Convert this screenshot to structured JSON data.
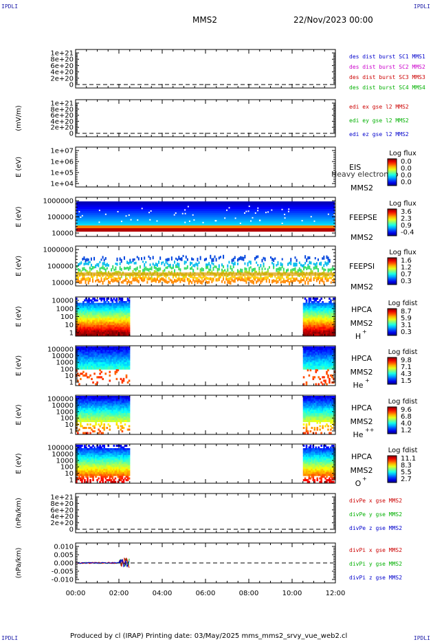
{
  "corners": {
    "top_left": "IPDLI",
    "top_right": "IPDLI",
    "bottom_left": "IPDLI",
    "bottom_right": "IPDLI"
  },
  "header": {
    "spacecraft": "MMS2",
    "date": "22/Nov/2023 00:00"
  },
  "footer": {
    "text": "Produced by cl (IRAP)   Printing date: 03/May/2025   mms_mms2_srvy_vue_web2.cl"
  },
  "chart_data": {
    "type": "stacked-timeseries",
    "time_ticks": [
      "00:00",
      "02:00",
      "04:00",
      "06:00",
      "08:00",
      "10:00",
      "12:00"
    ],
    "data_windows": [
      [
        "00:00",
        "02:30"
      ],
      [
        "10:30",
        "12:00"
      ]
    ],
    "panels": [
      {
        "id": "des",
        "kind": "line",
        "ylabel": "",
        "yticks": [
          "1e+21",
          "8e+20",
          "6e+20",
          "4e+20",
          "2e+20",
          "0"
        ],
        "legend": [
          {
            "text": "des dist burst SC1 MMS1",
            "color": "#0000cc"
          },
          {
            "text": "des dist burst SC2 MMS2",
            "color": "#cc00cc"
          },
          {
            "text": "des dist burst SC3 MMS3",
            "color": "#cc0000"
          },
          {
            "text": "des dist burst SC4 MMS4",
            "color": "#00b000"
          }
        ]
      },
      {
        "id": "edi",
        "kind": "line",
        "ylabel": "(mV/m)",
        "yticks": [
          "1e+21",
          "8e+20",
          "6e+20",
          "4e+20",
          "2e+20",
          "0"
        ],
        "legend": [
          {
            "text": "edi ex gse l2 MMS2",
            "color": "#cc0000"
          },
          {
            "text": "edi ey gse l2 MMS2",
            "color": "#00b000"
          },
          {
            "text": "edi ez gse l2 MMS2",
            "color": "#0000cc"
          }
        ]
      },
      {
        "id": "eis",
        "kind": "spectrogram",
        "ylabel": "E (eV)",
        "yticks": [
          "1e+07",
          "1e+06",
          "1e+05",
          "1e+04"
        ],
        "instrument": "EIS",
        "sc": "MMS2",
        "note": "Heavy electron to",
        "cbar_title": "Log flux",
        "cbar_ticks": [
          "0.0",
          "0.0",
          "0.0",
          "0.0"
        ]
      },
      {
        "id": "feepse",
        "kind": "spectrogram",
        "ylabel": "E (eV)",
        "yticks": [
          "1000000",
          "100000",
          "10000"
        ],
        "instrument": "FEEPSE",
        "sc": "MMS2",
        "cbar_title": "Log flux",
        "cbar_ticks": [
          "3.6",
          "2.3",
          "0.9",
          "-0.4"
        ]
      },
      {
        "id": "feepsi",
        "kind": "spectrogram",
        "ylabel": "E (eV)",
        "yticks": [
          "1000000",
          "100000",
          "10000"
        ],
        "instrument": "FEEPSI",
        "sc": "MMS2",
        "cbar_title": "Log flux",
        "cbar_ticks": [
          "1.6",
          "1.2",
          "0.7",
          "0.3"
        ]
      },
      {
        "id": "hpca_h",
        "kind": "spectrogram",
        "ylabel": "E (eV)",
        "yticks": [
          "10000",
          "1000",
          "100",
          "10",
          "1"
        ],
        "instrument": "HPCA",
        "sc": "MMS2",
        "species": "H",
        "charge": "+",
        "cbar_title": "Log fdist",
        "cbar_ticks": [
          "8.7",
          "5.9",
          "3.1",
          "0.3"
        ]
      },
      {
        "id": "hpca_he1",
        "kind": "spectrogram",
        "ylabel": "E (eV)",
        "yticks": [
          "100000",
          "10000",
          "1000",
          "100",
          "10",
          "1"
        ],
        "instrument": "HPCA",
        "sc": "MMS2",
        "species": "He",
        "charge": "+",
        "cbar_title": "Log fdist",
        "cbar_ticks": [
          "9.8",
          "7.1",
          "4.3",
          "1.5"
        ]
      },
      {
        "id": "hpca_he2",
        "kind": "spectrogram",
        "ylabel": "E (eV)",
        "yticks": [
          "100000",
          "10000",
          "1000",
          "100",
          "10",
          "1"
        ],
        "instrument": "HPCA",
        "sc": "MMS2",
        "species": "He",
        "charge": "++",
        "cbar_title": "Log fdist",
        "cbar_ticks": [
          "9.6",
          "6.8",
          "4.0",
          "1.2"
        ]
      },
      {
        "id": "hpca_o",
        "kind": "spectrogram",
        "ylabel": "E (eV)",
        "yticks": [
          "100000",
          "10000",
          "1000",
          "100",
          "10",
          "1"
        ],
        "instrument": "HPCA",
        "sc": "MMS2",
        "species": "O",
        "charge": "+",
        "cbar_title": "Log fdist",
        "cbar_ticks": [
          "11.1",
          "8.3",
          "5.5",
          "2.7"
        ]
      },
      {
        "id": "divpe",
        "kind": "line",
        "ylabel": "(nPa/km)",
        "yticks": [
          "1e+21",
          "8e+20",
          "6e+20",
          "4e+20",
          "2e+20",
          "0"
        ],
        "legend": [
          {
            "text": "divPe x gse MMS2",
            "color": "#cc0000"
          },
          {
            "text": "divPe y gse MMS2",
            "color": "#00b000"
          },
          {
            "text": "divPe z gse MMS2",
            "color": "#0000cc"
          }
        ]
      },
      {
        "id": "divpi",
        "kind": "line",
        "ylabel": "(nPa/km)",
        "yticks": [
          "0.010",
          "0.005",
          "0.000",
          "-0.005",
          "-0.010"
        ],
        "legend": [
          {
            "text": "divPi x gse MMS2",
            "color": "#cc0000"
          },
          {
            "text": "divPi y gse MMS2",
            "color": "#00b000"
          },
          {
            "text": "divPi z gse MMS2",
            "color": "#0000cc"
          }
        ]
      }
    ]
  }
}
